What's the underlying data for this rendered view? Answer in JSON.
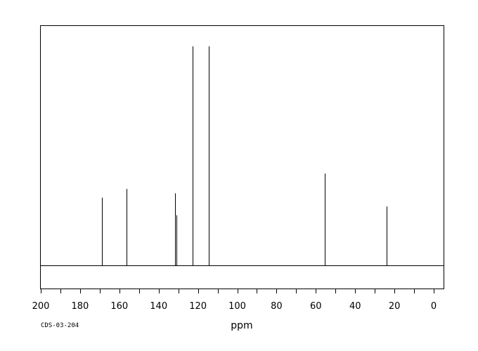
{
  "chart_data": {
    "type": "line",
    "subtype": "13C NMR spectrum",
    "title": "",
    "xlabel": "ppm",
    "ylabel": "",
    "xlim": [
      200,
      -5
    ],
    "x_reversed": true,
    "ylim": [
      0,
      1
    ],
    "x_ticks": [
      200,
      180,
      160,
      140,
      120,
      100,
      80,
      60,
      40,
      20,
      0
    ],
    "x_tick_labels": [
      "200",
      "180",
      "160",
      "140",
      "120",
      "100",
      "80",
      "60",
      "40",
      "20",
      "0"
    ],
    "minor_tick_step": 10,
    "grid": false,
    "legend": false,
    "peaks": [
      {
        "x": 168.9,
        "intensity": 0.31
      },
      {
        "x": 156.4,
        "intensity": 0.35
      },
      {
        "x": 131.5,
        "intensity": 0.33
      },
      {
        "x": 131.1,
        "intensity": 0.23
      },
      {
        "x": 122.6,
        "intensity": 1.0
      },
      {
        "x": 114.6,
        "intensity": 1.0
      },
      {
        "x": 55.5,
        "intensity": 0.42
      },
      {
        "x": 24.1,
        "intensity": 0.27
      },
      {
        "x": 23.9,
        "intensity": 0.18
      }
    ]
  },
  "footer": {
    "code": "CDS-03-204"
  }
}
